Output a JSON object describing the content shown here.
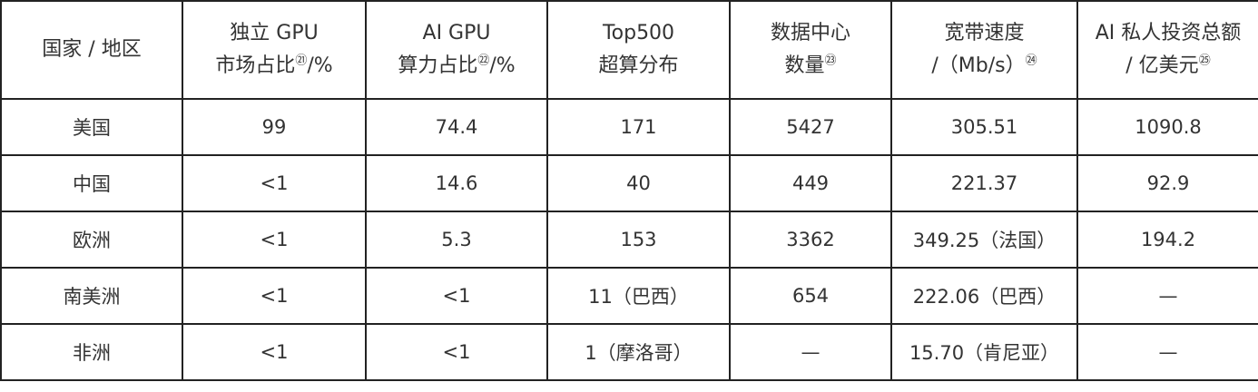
{
  "table": {
    "headers": [
      {
        "lines": [
          "国家 / 地区"
        ],
        "note": ""
      },
      {
        "lines": [
          "独立 GPU",
          "市场占比"
        ],
        "note": "㉑",
        "suffix": "/%"
      },
      {
        "lines": [
          "AI GPU",
          "算力占比"
        ],
        "note": "㉒",
        "suffix": "/%"
      },
      {
        "lines": [
          "Top500",
          "超算分布"
        ],
        "note": ""
      },
      {
        "lines": [
          "数据中心",
          "数量"
        ],
        "note": "㉓",
        "suffix": ""
      },
      {
        "lines": [
          "宽带速度",
          "/（Mb/s）"
        ],
        "note": "㉔",
        "suffix": ""
      },
      {
        "lines": [
          "AI 私人投资总额",
          "/ 亿美元"
        ],
        "note": "㉕",
        "suffix": ""
      }
    ],
    "rows": [
      [
        "美国",
        "99",
        "74.4",
        "171",
        "5427",
        "305.51",
        "1090.8"
      ],
      [
        "中国",
        "<1",
        "14.6",
        "40",
        "449",
        "221.37",
        "92.9"
      ],
      [
        "欧洲",
        "<1",
        "5.3",
        "153",
        "3362",
        "349.25（法国）",
        "194.2"
      ],
      [
        "南美洲",
        "<1",
        "<1",
        "11（巴西）",
        "654",
        "222.06（巴西）",
        "—"
      ],
      [
        "非洲",
        "<1",
        "<1",
        "1（摩洛哥）",
        "—",
        "15.70（肯尼亚）",
        "—"
      ]
    ]
  }
}
